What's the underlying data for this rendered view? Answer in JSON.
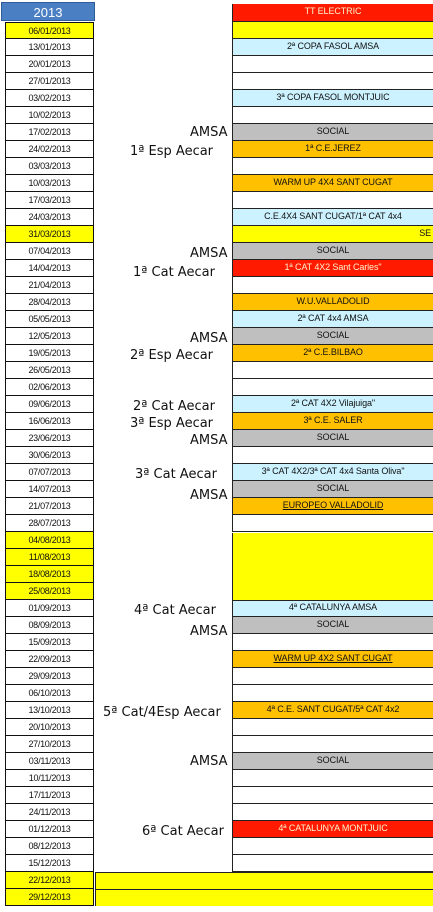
{
  "year": "2013",
  "dates": [
    {
      "d": "06/01/2013",
      "y": true
    },
    {
      "d": "13/01/2013",
      "y": false
    },
    {
      "d": "20/01/2013",
      "y": false
    },
    {
      "d": "27/01/2013",
      "y": false
    },
    {
      "d": "03/02/2013",
      "y": false
    },
    {
      "d": "10/02/2013",
      "y": false
    },
    {
      "d": "17/02/2013",
      "y": false
    },
    {
      "d": "24/02/2013",
      "y": false
    },
    {
      "d": "03/03/2013",
      "y": false
    },
    {
      "d": "10/03/2013",
      "y": false
    },
    {
      "d": "17/03/2013",
      "y": false
    },
    {
      "d": "24/03/2013",
      "y": false
    },
    {
      "d": "31/03/2013",
      "y": true
    },
    {
      "d": "07/04/2013",
      "y": false
    },
    {
      "d": "14/04/2013",
      "y": false
    },
    {
      "d": "21/04/2013",
      "y": false
    },
    {
      "d": "28/04/2013",
      "y": false
    },
    {
      "d": "05/05/2013",
      "y": false
    },
    {
      "d": "12/05/2013",
      "y": false
    },
    {
      "d": "19/05/2013",
      "y": false
    },
    {
      "d": "26/05/2013",
      "y": false
    },
    {
      "d": "02/06/2013",
      "y": false
    },
    {
      "d": "09/06/2013",
      "y": false
    },
    {
      "d": "16/06/2013",
      "y": false
    },
    {
      "d": "23/06/2013",
      "y": false
    },
    {
      "d": "30/06/2013",
      "y": false
    },
    {
      "d": "07/07/2013",
      "y": false
    },
    {
      "d": "14/07/2013",
      "y": false
    },
    {
      "d": "21/07/2013",
      "y": false
    },
    {
      "d": "28/07/2013",
      "y": false
    },
    {
      "d": "04/08/2013",
      "y": true
    },
    {
      "d": "11/08/2013",
      "y": true
    },
    {
      "d": "18/08/2013",
      "y": true
    },
    {
      "d": "25/08/2013",
      "y": true
    },
    {
      "d": "01/09/2013",
      "y": false
    },
    {
      "d": "08/09/2013",
      "y": false
    },
    {
      "d": "15/09/2013",
      "y": false
    },
    {
      "d": "22/09/2013",
      "y": false
    },
    {
      "d": "29/09/2013",
      "y": false
    },
    {
      "d": "06/10/2013",
      "y": false
    },
    {
      "d": "13/10/2013",
      "y": false
    },
    {
      "d": "20/10/2013",
      "y": false
    },
    {
      "d": "27/10/2013",
      "y": false
    },
    {
      "d": "03/11/2013",
      "y": false
    },
    {
      "d": "10/11/2013",
      "y": false
    },
    {
      "d": "17/11/2013",
      "y": false
    },
    {
      "d": "24/11/2013",
      "y": false
    },
    {
      "d": "01/12/2013",
      "y": false
    },
    {
      "d": "08/12/2013",
      "y": false
    },
    {
      "d": "15/12/2013",
      "y": false
    },
    {
      "d": "22/12/2013",
      "y": true
    },
    {
      "d": "29/12/2013",
      "y": true
    }
  ],
  "events": [
    {
      "row": -1,
      "text": "TT ELECTRIC",
      "style": "red"
    },
    {
      "row": 0,
      "text": "",
      "style": "yellow"
    },
    {
      "row": 1,
      "text": "2ª COPA FASOL AMSA",
      "style": "blue"
    },
    {
      "row": 2,
      "text": "",
      "style": "white"
    },
    {
      "row": 3,
      "text": "",
      "style": "white"
    },
    {
      "row": 4,
      "text": "3ª COPA FASOL MONTJUIC",
      "style": "blue"
    },
    {
      "row": 5,
      "text": "",
      "style": "white"
    },
    {
      "row": 6,
      "text": "SOCIAL",
      "style": "gray"
    },
    {
      "row": 7,
      "text": "1ª C.E.JEREZ",
      "style": "orange"
    },
    {
      "row": 8,
      "text": "",
      "style": "white"
    },
    {
      "row": 9,
      "text": "WARM UP 4X4 SANT CUGAT",
      "style": "orange"
    },
    {
      "row": 10,
      "text": "",
      "style": "white"
    },
    {
      "row": 11,
      "text": "C.E.4X4 SANT CUGAT/1ª CAT 4x4",
      "style": "blue"
    },
    {
      "row": 12,
      "text": "SE",
      "style": "yellow",
      "align": "right"
    },
    {
      "row": 13,
      "text": "SOCIAL",
      "style": "gray"
    },
    {
      "row": 14,
      "text": "1ª CAT 4X2 Sant Carles\"",
      "style": "red"
    },
    {
      "row": 15,
      "text": "",
      "style": "white"
    },
    {
      "row": 16,
      "text": "W.U.VALLADOLID",
      "style": "orange"
    },
    {
      "row": 17,
      "text": "2ª CAT 4x4 AMSA",
      "style": "blue"
    },
    {
      "row": 18,
      "text": "SOCIAL",
      "style": "gray"
    },
    {
      "row": 19,
      "text": "2ª C.E.BILBAO",
      "style": "orange"
    },
    {
      "row": 20,
      "text": "",
      "style": "white"
    },
    {
      "row": 21,
      "text": "",
      "style": "white"
    },
    {
      "row": 22,
      "text": "2ª CAT 4X2 Vilajuiga\"",
      "style": "blue"
    },
    {
      "row": 23,
      "text": "3ª C.E. SALER",
      "style": "orange"
    },
    {
      "row": 24,
      "text": "SOCIAL",
      "style": "gray"
    },
    {
      "row": 25,
      "text": "",
      "style": "white"
    },
    {
      "row": 26,
      "text": "3ª CAT 4X2/3ª CAT 4x4 Santa Oliva\"",
      "style": "blue"
    },
    {
      "row": 27,
      "text": "SOCIAL",
      "style": "gray"
    },
    {
      "row": 28,
      "text": "EUROPEO VALLADOLID",
      "style": "orange",
      "underline": true
    },
    {
      "row": 29,
      "text": "",
      "style": "white"
    },
    {
      "row": 34,
      "text": "4ª CATALUNYA AMSA",
      "style": "blue"
    },
    {
      "row": 35,
      "text": "SOCIAL",
      "style": "gray"
    },
    {
      "row": 36,
      "text": "",
      "style": "white"
    },
    {
      "row": 37,
      "text": "WARM UP 4X2 SANT CUGAT",
      "style": "orange",
      "underline": true
    },
    {
      "row": 38,
      "text": "",
      "style": "white"
    },
    {
      "row": 39,
      "text": "",
      "style": "white"
    },
    {
      "row": 40,
      "text": "4ª C.E. SANT CUGAT/5ª CAT 4x2",
      "style": "orange"
    },
    {
      "row": 41,
      "text": "",
      "style": "white"
    },
    {
      "row": 42,
      "text": "",
      "style": "white"
    },
    {
      "row": 43,
      "text": "SOCIAL",
      "style": "gray"
    },
    {
      "row": 44,
      "text": "",
      "style": "white"
    },
    {
      "row": 45,
      "text": "",
      "style": "white"
    },
    {
      "row": 46,
      "text": "",
      "style": "white"
    },
    {
      "row": 47,
      "text": "4ª CATALUNYA MONTJUIC",
      "style": "red"
    },
    {
      "row": 48,
      "text": "",
      "style": "white"
    },
    {
      "row": 49,
      "text": "",
      "style": "white"
    }
  ],
  "labels": [
    {
      "text": "AMSA",
      "row": 6.2,
      "indent": 80
    },
    {
      "text": "1ª Esp  Aecar",
      "row": 7.3,
      "indent": 20
    },
    {
      "text": "AMSA",
      "row": 13.3,
      "indent": 80
    },
    {
      "text": "1ª Cat  Aecar",
      "row": 14.4,
      "indent": 23
    },
    {
      "text": "AMSA",
      "row": 18.3,
      "indent": 80
    },
    {
      "text": "2ª Esp  Aecar",
      "row": 19.3,
      "indent": 20
    },
    {
      "text": "2ª Cat  Aecar",
      "row": 22.3,
      "indent": 23
    },
    {
      "text": "3ª Esp  Aecar",
      "row": 23.3,
      "indent": 20
    },
    {
      "text": "AMSA",
      "row": 24.3,
      "indent": 80
    },
    {
      "text": "3ª Cat  Aecar",
      "row": 26.3,
      "indent": 25
    },
    {
      "text": "AMSA",
      "row": 27.5,
      "indent": 80
    },
    {
      "text": "4ª Cat  Aecar",
      "row": 34.3,
      "indent": 24
    },
    {
      "text": "AMSA",
      "row": 35.5,
      "indent": 80
    },
    {
      "text": "5ª Cat/4Esp  Aecar",
      "row": 40.3,
      "indent": -7
    },
    {
      "text": "AMSA",
      "row": 43.2,
      "indent": 80
    },
    {
      "text": "6ª Cat  Aecar",
      "row": 47.3,
      "indent": 32
    }
  ],
  "colors": {
    "red": "#ff1a00",
    "blue": "#ccf2ff",
    "gray": "#bfbfbf",
    "orange": "#ffc000",
    "yellow": "#ffff00"
  }
}
